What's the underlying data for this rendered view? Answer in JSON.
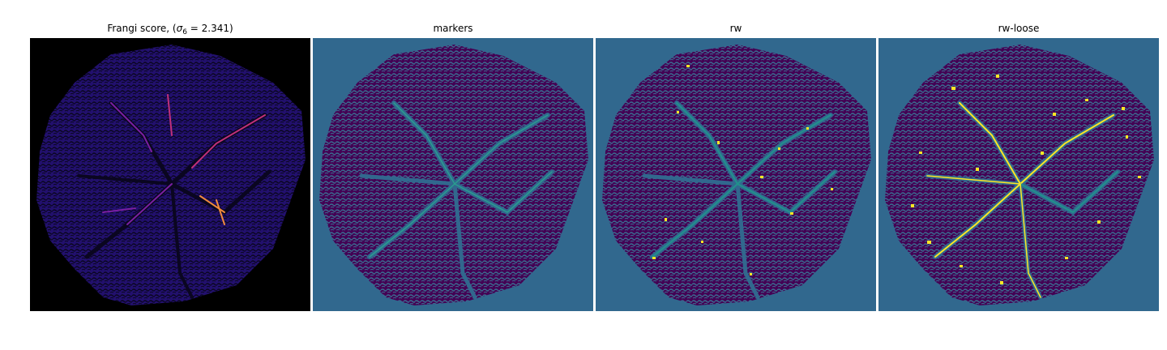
{
  "figure": {
    "panels": [
      {
        "title_prefix": "Frangi score, (",
        "title_symbol": "σ",
        "title_sub": "6",
        "title_suffix": " = 2.341)",
        "background": "#000000",
        "blob_fill": "#22106e",
        "texture_color": "#0a0620",
        "vessel_colors": [
          "#7a1fa2",
          "#c0307a",
          "#f08a3c"
        ]
      },
      {
        "title": "markers",
        "background": "#31688e",
        "blob_fill": "#440154",
        "texture_color": "#3b6c90",
        "vessel_colors": [
          "#2a9d8f",
          "#21918c"
        ]
      },
      {
        "title": "rw",
        "background": "#31688e",
        "blob_fill": "#440154",
        "texture_color": "#3b6c90",
        "vessel_colors": [
          "#21918c",
          "#fde725"
        ]
      },
      {
        "title": "rw-loose",
        "background": "#31688e",
        "blob_fill": "#440154",
        "texture_color": "#3b6c90",
        "vessel_colors": [
          "#21918c",
          "#fde725"
        ]
      }
    ]
  }
}
